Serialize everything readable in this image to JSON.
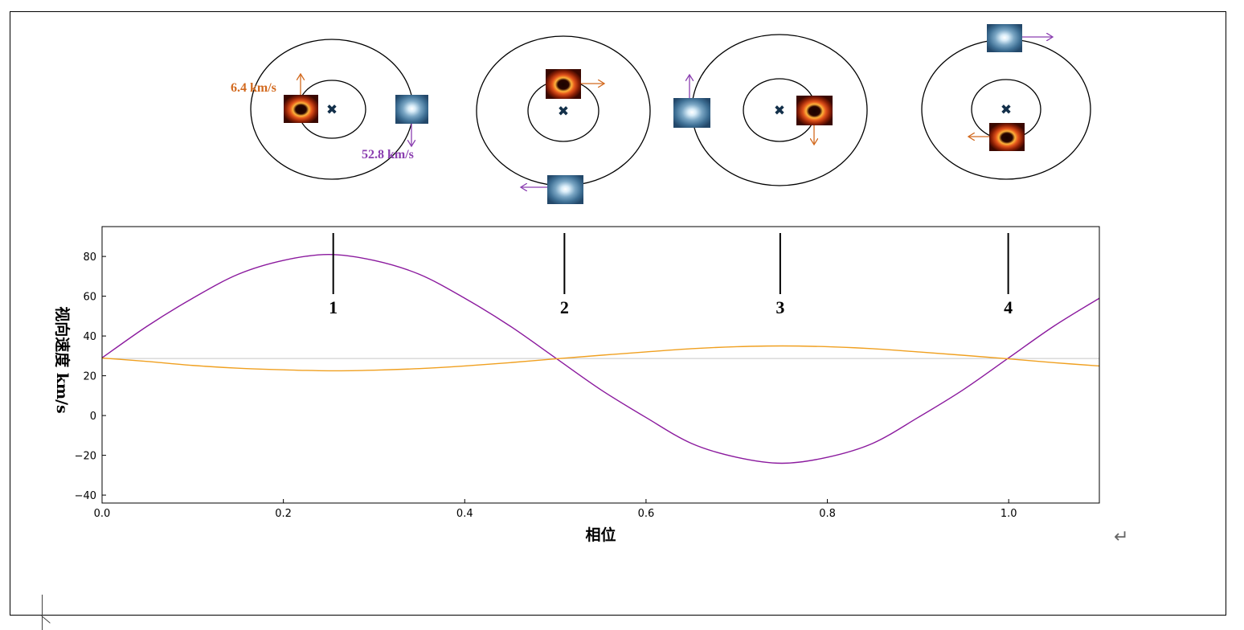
{
  "chart_data": {
    "type": "line",
    "xlabel": "相位",
    "ylabel": "视向速度 km/s",
    "xlim": [
      0.0,
      1.1
    ],
    "ylim": [
      -44,
      95
    ],
    "xticks": [
      "0.0",
      "0.2",
      "0.4",
      "0.6",
      "0.8",
      "1.0"
    ],
    "yticks": [
      "−40",
      "−20",
      "0",
      "20",
      "40",
      "60",
      "80"
    ],
    "baseline": 28.7,
    "series": [
      {
        "color": "#8b1a9e",
        "x": [
          0.0,
          0.05,
          0.1,
          0.15,
          0.2,
          0.25,
          0.3,
          0.35,
          0.4,
          0.45,
          0.5,
          0.55,
          0.6,
          0.65,
          0.7,
          0.75,
          0.8,
          0.85,
          0.9,
          0.95,
          1.0,
          1.05,
          1.1
        ],
        "values": [
          29,
          45,
          59,
          71,
          78,
          81,
          78,
          71,
          59,
          45,
          29,
          13,
          -1,
          -14,
          -21,
          -24,
          -21,
          -14,
          -1,
          13,
          29,
          45,
          59
        ]
      },
      {
        "color": "#f0a020",
        "x": [
          0.0,
          0.05,
          0.1,
          0.15,
          0.2,
          0.25,
          0.3,
          0.35,
          0.4,
          0.45,
          0.5,
          0.55,
          0.6,
          0.65,
          0.7,
          0.75,
          0.8,
          0.85,
          0.9,
          0.95,
          1.0,
          1.05,
          1.1
        ],
        "values": [
          28.9,
          27.2,
          25.2,
          23.8,
          23.0,
          22.5,
          22.8,
          23.6,
          24.9,
          26.6,
          28.5,
          30.3,
          32.0,
          33.6,
          34.6,
          35.0,
          34.6,
          33.6,
          32.0,
          30.3,
          28.5,
          26.6,
          24.9
        ]
      }
    ],
    "markers": [
      {
        "label": "1",
        "x": 0.255
      },
      {
        "label": "2",
        "x": 0.51
      },
      {
        "label": "3",
        "x": 0.748
      },
      {
        "label": "4",
        "x": 0.9995
      }
    ],
    "annotations": {
      "orange_velocity": "6.4 km/s",
      "purple_velocity": "52.8 km/s"
    }
  }
}
